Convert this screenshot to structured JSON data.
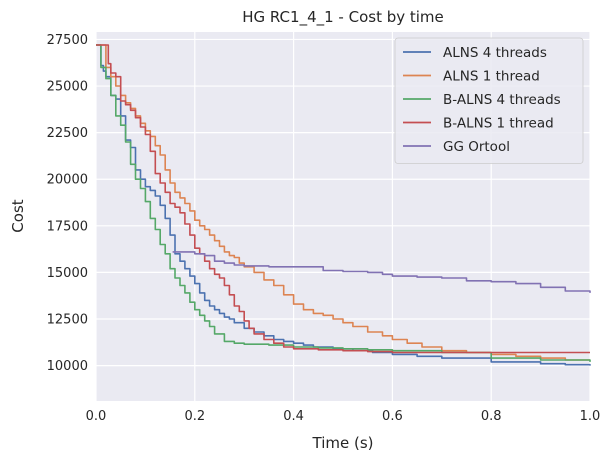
{
  "chart_data": {
    "type": "line",
    "title": "HG RC1_4_1 - Cost by time",
    "xlabel": "Time (s)",
    "ylabel": "Cost",
    "xlim": [
      0,
      1.0
    ],
    "ylim": [
      8100,
      27900
    ],
    "xticks": [
      0.0,
      0.2,
      0.4,
      0.6,
      0.8,
      1.0
    ],
    "xtick_labels": [
      "0.0",
      "0.2",
      "0.4",
      "0.6",
      "0.8",
      "1.0"
    ],
    "yticks": [
      10000,
      12500,
      15000,
      17500,
      20000,
      22500,
      25000,
      27500
    ],
    "ytick_labels": [
      "10000",
      "12500",
      "15000",
      "17500",
      "20000",
      "22500",
      "25000",
      "27500"
    ],
    "grid": true,
    "legend_position": "top-right",
    "background_color": "#eaeaf2",
    "series": [
      {
        "name": "ALNS 4 threads",
        "color": "#4c72b0",
        "x": [
          0.0,
          0.01,
          0.015,
          0.02,
          0.03,
          0.04,
          0.05,
          0.06,
          0.07,
          0.08,
          0.09,
          0.1,
          0.11,
          0.12,
          0.13,
          0.14,
          0.15,
          0.16,
          0.17,
          0.18,
          0.19,
          0.2,
          0.21,
          0.22,
          0.23,
          0.24,
          0.25,
          0.26,
          0.27,
          0.28,
          0.3,
          0.32,
          0.34,
          0.36,
          0.38,
          0.4,
          0.42,
          0.44,
          0.48,
          0.52,
          0.56,
          0.6,
          0.65,
          0.7,
          0.8,
          0.9,
          0.95,
          1.0
        ],
        "y": [
          27200,
          26100,
          25800,
          25500,
          24500,
          24300,
          23400,
          22100,
          21700,
          20500,
          20000,
          19600,
          19400,
          19100,
          18600,
          17900,
          17000,
          16000,
          15600,
          15200,
          14800,
          14400,
          13900,
          13500,
          13200,
          13000,
          12800,
          12600,
          12500,
          12300,
          12000,
          11800,
          11600,
          11400,
          11300,
          11200,
          11100,
          11000,
          10900,
          10800,
          10700,
          10600,
          10500,
          10400,
          10200,
          10100,
          10050,
          10000
        ]
      },
      {
        "name": "ALNS 1 thread",
        "color": "#dd8452",
        "x": [
          0.0,
          0.02,
          0.03,
          0.04,
          0.05,
          0.06,
          0.07,
          0.08,
          0.09,
          0.1,
          0.11,
          0.12,
          0.13,
          0.14,
          0.15,
          0.16,
          0.17,
          0.18,
          0.19,
          0.2,
          0.21,
          0.22,
          0.23,
          0.24,
          0.25,
          0.26,
          0.27,
          0.28,
          0.29,
          0.3,
          0.32,
          0.34,
          0.36,
          0.38,
          0.4,
          0.42,
          0.44,
          0.46,
          0.48,
          0.5,
          0.52,
          0.55,
          0.58,
          0.6,
          0.63,
          0.66,
          0.7,
          0.75,
          0.8,
          0.85,
          0.9,
          0.95,
          1.0
        ],
        "y": [
          27200,
          26000,
          25500,
          25000,
          24500,
          24100,
          23800,
          23400,
          23000,
          22600,
          22300,
          21800,
          21300,
          20500,
          19800,
          19300,
          19000,
          18700,
          18300,
          17800,
          17500,
          17300,
          17000,
          16700,
          16400,
          16100,
          15900,
          15800,
          15500,
          15300,
          15000,
          14600,
          14300,
          13800,
          13300,
          13000,
          12800,
          12700,
          12500,
          12300,
          12100,
          11800,
          11600,
          11400,
          11200,
          11000,
          10800,
          10700,
          10600,
          10500,
          10400,
          10300,
          10300
        ]
      },
      {
        "name": "B-ALNS 4 threads",
        "color": "#55a868",
        "x": [
          0.0,
          0.01,
          0.02,
          0.03,
          0.04,
          0.05,
          0.06,
          0.07,
          0.08,
          0.09,
          0.1,
          0.11,
          0.12,
          0.13,
          0.14,
          0.15,
          0.16,
          0.17,
          0.18,
          0.19,
          0.2,
          0.21,
          0.22,
          0.23,
          0.24,
          0.26,
          0.28,
          0.3,
          0.35,
          0.4,
          0.45,
          0.5,
          0.55,
          0.6,
          0.7,
          0.8,
          0.9,
          1.0
        ],
        "y": [
          27200,
          26000,
          25400,
          24500,
          23400,
          22900,
          22000,
          20800,
          20000,
          19500,
          18800,
          17900,
          17300,
          16500,
          16000,
          15200,
          14700,
          14300,
          13900,
          13400,
          13000,
          12700,
          12400,
          12100,
          11700,
          11300,
          11200,
          11150,
          11100,
          11000,
          10950,
          10900,
          10850,
          10800,
          10700,
          10400,
          10300,
          10200
        ]
      },
      {
        "name": "B-ALNS 1 thread",
        "color": "#c44e52",
        "x": [
          0.0,
          0.02,
          0.025,
          0.03,
          0.04,
          0.05,
          0.06,
          0.07,
          0.08,
          0.09,
          0.1,
          0.11,
          0.12,
          0.13,
          0.14,
          0.15,
          0.16,
          0.17,
          0.18,
          0.19,
          0.2,
          0.21,
          0.22,
          0.23,
          0.24,
          0.25,
          0.26,
          0.27,
          0.28,
          0.29,
          0.3,
          0.31,
          0.32,
          0.34,
          0.36,
          0.38,
          0.4,
          0.45,
          0.5,
          0.55,
          0.6,
          0.7,
          0.8,
          0.9,
          1.0
        ],
        "y": [
          27200,
          27200,
          26200,
          25700,
          25500,
          24200,
          24000,
          23700,
          23300,
          22800,
          22400,
          21500,
          20300,
          19800,
          19300,
          18700,
          18500,
          18200,
          17600,
          17000,
          16300,
          16000,
          15600,
          15200,
          14900,
          14700,
          14300,
          13800,
          13200,
          12900,
          12400,
          12000,
          11700,
          11400,
          11200,
          11000,
          10900,
          10850,
          10800,
          10750,
          10700,
          10700,
          10700,
          10700,
          10700
        ]
      },
      {
        "name": "GG Ortool",
        "color": "#8172b3",
        "x": [
          0.155,
          0.2,
          0.22,
          0.24,
          0.26,
          0.28,
          0.3,
          0.35,
          0.4,
          0.45,
          0.46,
          0.5,
          0.55,
          0.58,
          0.6,
          0.65,
          0.7,
          0.75,
          0.8,
          0.85,
          0.9,
          0.95,
          1.0
        ],
        "y": [
          16100,
          16000,
          15900,
          15600,
          15500,
          15400,
          15350,
          15300,
          15300,
          15300,
          15100,
          15050,
          15000,
          14900,
          14800,
          14750,
          14700,
          14550,
          14500,
          14400,
          14200,
          14000,
          13900
        ]
      }
    ]
  }
}
